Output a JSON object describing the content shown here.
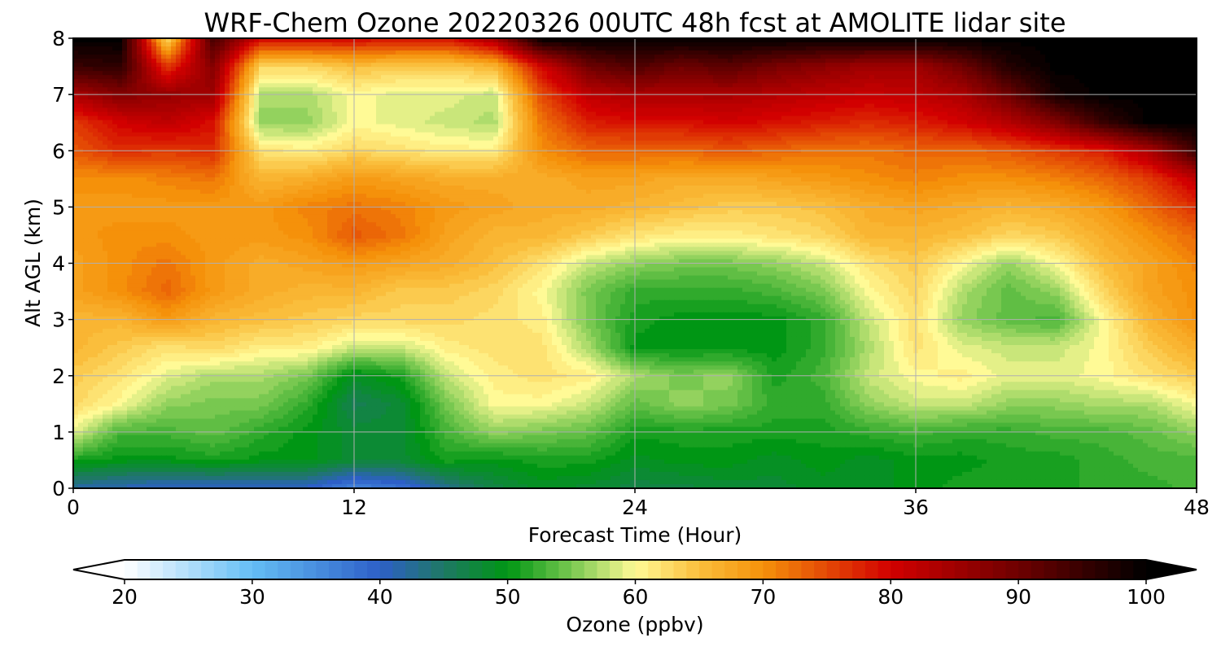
{
  "chart_data": {
    "type": "heatmap",
    "title": "WRF-Chem Ozone  20220326 00UTC 48h fcst at AMOLITE lidar site",
    "xlabel": "Forecast Time (Hour)",
    "ylabel": "Alt AGL (km)",
    "x_ticks": [
      "0",
      "12",
      "24",
      "36",
      "48"
    ],
    "y_ticks": [
      "0",
      "1",
      "2",
      "3",
      "4",
      "5",
      "6",
      "7",
      "8"
    ],
    "xlim": [
      0,
      48
    ],
    "ylim": [
      0,
      8
    ],
    "grid": true,
    "x": [
      0,
      2,
      4,
      6,
      8,
      10,
      12,
      14,
      16,
      18,
      20,
      22,
      24,
      26,
      28,
      30,
      32,
      34,
      36,
      38,
      40,
      42,
      44,
      46,
      48
    ],
    "y": [
      0,
      0.5,
      1,
      1.5,
      2,
      2.5,
      3,
      3.5,
      4,
      4.5,
      5,
      5.5,
      6,
      6.5,
      7,
      7.5,
      8
    ],
    "z": [
      [
        42,
        41,
        40,
        40,
        40,
        40,
        36,
        38,
        43,
        47,
        49,
        48,
        47,
        47,
        48,
        48,
        49,
        49,
        50,
        51,
        51,
        51,
        52,
        52,
        53
      ],
      [
        51,
        50,
        50,
        51,
        50,
        50,
        48,
        48,
        51,
        50,
        51,
        51,
        49,
        50,
        50,
        49,
        50,
        49,
        50,
        50,
        51,
        51,
        52,
        53,
        53
      ],
      [
        59,
        53,
        53,
        54,
        52,
        50,
        48,
        48,
        53,
        56,
        55,
        54,
        51,
        51,
        51,
        51,
        51,
        52,
        53,
        52,
        52,
        53,
        53,
        54,
        56
      ],
      [
        63,
        60,
        56,
        55,
        55,
        52,
        46,
        48,
        55,
        60,
        60,
        58,
        54,
        56,
        55,
        52,
        52,
        56,
        58,
        58,
        56,
        56,
        57,
        57,
        60
      ],
      [
        64,
        62,
        59,
        57,
        57,
        55,
        49,
        51,
        58,
        61,
        62,
        61,
        57,
        55,
        56,
        51,
        53,
        58,
        60,
        61,
        59,
        59,
        60,
        62,
        64
      ],
      [
        66,
        64,
        62,
        63,
        61,
        61,
        58,
        58,
        61,
        62,
        62,
        57,
        50,
        50,
        50,
        50,
        52,
        57,
        62,
        59,
        58,
        58,
        60,
        64,
        67
      ],
      [
        66,
        66,
        69,
        66,
        65,
        64,
        63,
        63,
        63,
        62,
        61,
        55,
        51,
        50,
        50,
        50,
        52,
        58,
        62,
        56,
        54,
        53,
        60,
        66,
        70
      ],
      [
        68,
        70,
        73,
        69,
        67,
        66,
        66,
        64,
        64,
        63,
        60,
        55,
        52,
        52,
        52,
        53,
        55,
        60,
        63,
        57,
        54,
        56,
        63,
        68,
        70
      ],
      [
        68,
        70,
        72,
        69,
        67,
        68,
        69,
        68,
        67,
        65,
        62,
        58,
        56,
        55,
        55,
        56,
        58,
        62,
        64,
        60,
        56,
        60,
        65,
        68,
        71
      ],
      [
        69,
        70,
        70,
        69,
        69,
        70,
        74,
        72,
        68,
        66,
        66,
        64,
        62,
        61,
        61,
        62,
        63,
        66,
        66,
        65,
        63,
        64,
        67,
        70,
        73
      ],
      [
        69,
        69,
        69,
        69,
        69,
        71,
        72,
        71,
        69,
        68,
        67,
        67,
        66,
        65,
        64,
        64,
        65,
        67,
        68,
        67,
        66,
        67,
        69,
        73,
        77
      ],
      [
        70,
        70,
        71,
        72,
        66,
        67,
        69,
        68,
        67,
        67,
        67,
        68,
        68,
        67,
        67,
        68,
        69,
        70,
        71,
        70,
        70,
        71,
        73,
        76,
        82
      ],
      [
        74,
        77,
        76,
        77,
        62,
        61,
        63,
        62,
        61,
        61,
        70,
        73,
        73,
        73,
        74,
        73,
        72,
        72,
        73,
        73,
        74,
        76,
        78,
        84,
        95
      ],
      [
        76,
        80,
        82,
        79,
        56,
        56,
        60,
        59,
        58,
        57,
        72,
        78,
        79,
        79,
        80,
        79,
        78,
        77,
        78,
        80,
        83,
        88,
        95,
        100,
        100
      ],
      [
        84,
        88,
        86,
        85,
        57,
        57,
        60,
        59,
        59,
        58,
        75,
        82,
        84,
        84,
        84,
        83,
        82,
        81,
        82,
        84,
        90,
        98,
        100,
        100,
        100
      ],
      [
        95,
        96,
        76,
        88,
        63,
        63,
        65,
        64,
        64,
        66,
        80,
        90,
        93,
        90,
        92,
        89,
        87,
        85,
        85,
        90,
        97,
        100,
        100,
        100,
        100
      ],
      [
        100,
        100,
        62,
        94,
        80,
        80,
        80,
        79,
        79,
        85,
        100,
        100,
        100,
        100,
        100,
        100,
        100,
        100,
        100,
        100,
        100,
        100,
        100,
        100,
        100
      ]
    ],
    "colorbar": {
      "label": "Ozone  (ppbv)",
      "ticks": [
        "20",
        "30",
        "40",
        "50",
        "60",
        "70",
        "80",
        "90",
        "100"
      ],
      "range": [
        20,
        100
      ],
      "extend": "both",
      "levels": 80
    }
  }
}
